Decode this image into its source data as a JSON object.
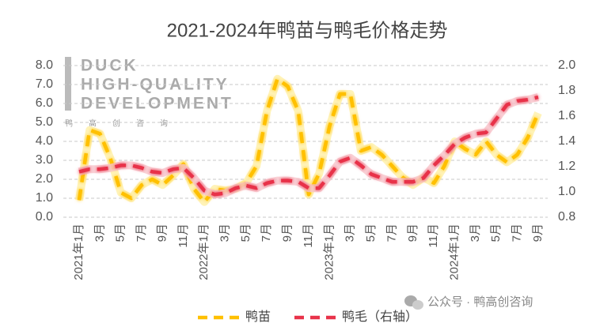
{
  "chart_data": {
    "type": "line",
    "title": "2021-2024年鸭苗与鸭毛价格走势",
    "categories": [
      "2021年1月",
      null,
      "3月",
      null,
      "5月",
      null,
      "7月",
      null,
      "9月",
      null,
      "11月",
      null,
      "2022年1月",
      null,
      "3月",
      null,
      "5月",
      null,
      "7月",
      null,
      "9月",
      null,
      "11月",
      null,
      "2023年1月",
      null,
      "3月",
      null,
      "5月",
      null,
      "7月",
      null,
      "9月",
      null,
      "11月",
      null,
      "2024年1月",
      null,
      "3月",
      null,
      "5月",
      null,
      "7月",
      null,
      "9月"
    ],
    "series": [
      {
        "name": "鸭苗",
        "color": "#ffc000",
        "glow": "#fff0a8",
        "values": [
          0.9,
          4.6,
          4.4,
          3.1,
          1.3,
          1.0,
          1.7,
          2.0,
          1.7,
          2.2,
          2.8,
          1.5,
          0.8,
          1.5,
          1.4,
          1.5,
          1.8,
          2.7,
          5.6,
          7.3,
          6.9,
          5.6,
          1.2,
          2.3,
          4.8,
          6.5,
          6.5,
          3.5,
          3.7,
          3.3,
          2.7,
          2.1,
          1.7,
          2.1,
          1.8,
          2.7,
          4.0,
          3.6,
          3.3,
          4.0,
          3.3,
          2.9,
          3.3,
          4.2,
          5.5
        ]
      },
      {
        "name": "鸭毛（右轴）",
        "color": "#e8334a",
        "glow": "#f8c6cc",
        "axis": "y2",
        "values": [
          1.16,
          1.18,
          1.18,
          1.19,
          1.21,
          1.21,
          1.19,
          1.16,
          1.15,
          1.18,
          1.19,
          1.11,
          1.01,
          0.98,
          0.99,
          1.03,
          1.05,
          1.03,
          1.07,
          1.09,
          1.09,
          1.08,
          1.03,
          1.03,
          1.13,
          1.24,
          1.27,
          1.21,
          1.14,
          1.11,
          1.08,
          1.08,
          1.08,
          1.11,
          1.21,
          1.29,
          1.38,
          1.43,
          1.46,
          1.47,
          1.58,
          1.69,
          1.72,
          1.73,
          1.75
        ]
      }
    ],
    "ylim": [
      0,
      8
    ],
    "yticks": [
      {
        "value": 0,
        "label": "0.0"
      },
      {
        "value": 1,
        "label": "1.0"
      },
      {
        "value": 2,
        "label": "2.0"
      },
      {
        "value": 3,
        "label": "3.0"
      },
      {
        "value": 4,
        "label": "4.0"
      },
      {
        "value": 5,
        "label": "5.0"
      },
      {
        "value": 6,
        "label": "6.0"
      },
      {
        "value": 7,
        "label": "7.0"
      },
      {
        "value": 8,
        "label": "8.0"
      }
    ],
    "y2lim": [
      0.8,
      2.0
    ],
    "y2ticks": [
      0.8,
      {
        "value": 1,
        "label": "1.0"
      },
      1.2,
      1.4,
      1.6,
      1.8,
      {
        "value": 2,
        "label": "2.0"
      }
    ],
    "grid": true,
    "legend": "bottom",
    "watermark": {
      "lines": [
        "DUCK",
        "HIGH-QUALITY",
        "DEVELOPMENT"
      ],
      "caption": "鸭　　高　　创　　咨　　询"
    },
    "source_note": "公众号 · 鸭高创咨询"
  }
}
